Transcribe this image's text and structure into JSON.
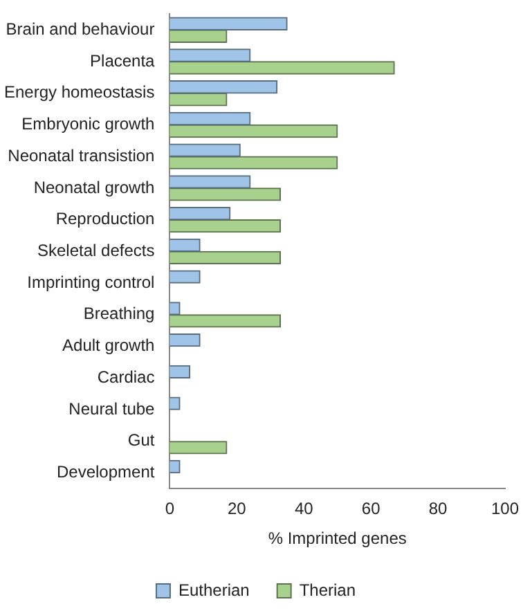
{
  "chart_data": {
    "type": "bar",
    "orientation": "horizontal",
    "xlabel": "% Imprinted genes",
    "categories": [
      "Brain and behaviour",
      "Placenta",
      "Energy homeostasis",
      "Embryonic growth",
      "Neonatal transistion",
      "Neonatal growth",
      "Reproduction",
      "Skeletal defects",
      "Imprinting control",
      "Breathing",
      "Adult growth",
      "Cardiac",
      "Neural tube",
      "Gut",
      "Development"
    ],
    "series": [
      {
        "name": "Eutherian",
        "color": "#a0c4e8",
        "values": [
          35,
          24,
          32,
          24,
          21,
          24,
          18,
          9,
          9,
          3,
          9,
          6,
          3,
          null,
          3
        ]
      },
      {
        "name": "Therian",
        "color": "#a9d18e",
        "values": [
          17,
          67,
          17,
          50,
          50,
          33,
          33,
          33,
          null,
          33,
          null,
          null,
          null,
          17,
          null
        ]
      }
    ],
    "xlim": [
      0,
      100
    ],
    "xticks": [
      0,
      20,
      40,
      60,
      80,
      100
    ],
    "grid": false,
    "legend": "bottom"
  }
}
